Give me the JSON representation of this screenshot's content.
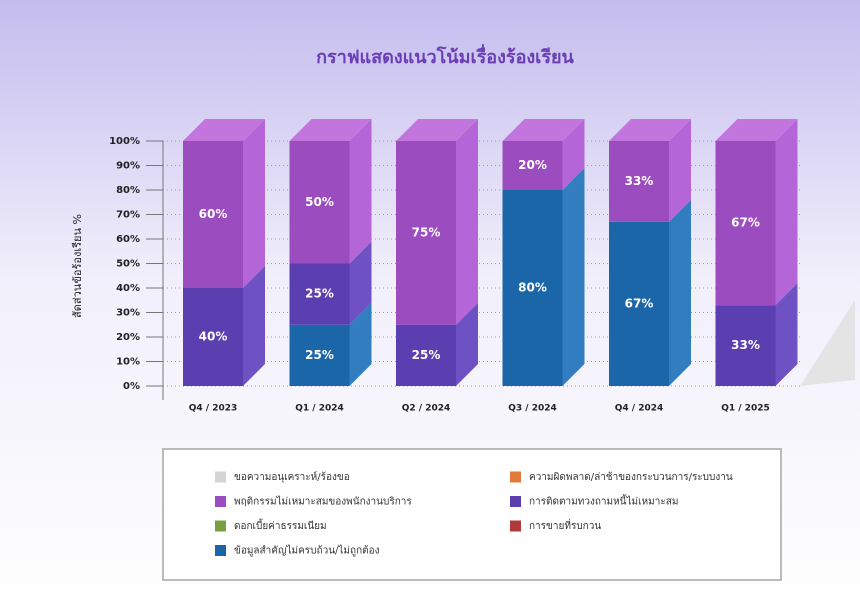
{
  "chart_data": {
    "type": "stacked-bar-3d",
    "title": "กราฟแสดงแนวโน้มเรื่องร้องเรียน",
    "y_label": "สัดส่วนข้อร้องเรียน %",
    "categories": [
      "Q4 / 2023",
      "Q1 / 2024",
      "Q2 / 2024",
      "Q3 / 2024",
      "Q4 / 2024",
      "Q1 / 2025"
    ],
    "ylim": [
      0,
      100
    ],
    "yticks": [
      {
        "value": 0,
        "label": "0%"
      },
      {
        "value": 10,
        "label": "10%"
      },
      {
        "value": 20,
        "label": "20%"
      },
      {
        "value": 30,
        "label": "30%"
      },
      {
        "value": 40,
        "label": "40%"
      },
      {
        "value": 50,
        "label": "50%"
      },
      {
        "value": 60,
        "label": "60%"
      },
      {
        "value": 70,
        "label": "70%"
      },
      {
        "value": 80,
        "label": "80%"
      },
      {
        "value": 90,
        "label": "90%"
      },
      {
        "value": 100,
        "label": "100%"
      }
    ],
    "grid": true,
    "series": [
      {
        "name": "ขอความอนุเคราะห์/ร้องขอ",
        "color": "#d4d4d4",
        "values": [
          null,
          null,
          null,
          null,
          null,
          null
        ]
      },
      {
        "name": "ความผิดพลาด/ล่าช้าของกระบวนการ/ระบบงาน",
        "color": "#e07b39",
        "values": [
          null,
          null,
          null,
          null,
          null,
          null
        ]
      },
      {
        "name": "พฤติกรรมไม่เหมาะสมของพนักงานบริการ",
        "color": "#9b4dbf",
        "values": [
          60,
          50,
          75,
          20,
          33,
          67
        ],
        "value_labels": [
          "60%",
          "50%",
          "75%",
          "20%",
          "33%",
          "67%"
        ]
      },
      {
        "name": "การติดตามทวงถามหนี้ไม่เหมาะสม",
        "color": "#5b3fb0",
        "values": [
          40,
          25,
          25,
          null,
          null,
          33
        ],
        "value_labels": [
          "40%",
          "25%",
          "25%",
          null,
          null,
          "33%"
        ]
      },
      {
        "name": "ดอกเบี้ยค่าธรรมเนียม",
        "color": "#78a040",
        "values": [
          null,
          null,
          null,
          null,
          null,
          null
        ]
      },
      {
        "name": "การขายที่รบกวน",
        "color": "#b03a3a",
        "values": [
          null,
          null,
          null,
          null,
          null,
          null
        ]
      },
      {
        "name": "ข้อมูลสำคัญไม่ครบถ้วน/ไม่ถูกต้อง",
        "color": "#1b66a8",
        "values": [
          null,
          25,
          null,
          80,
          67,
          null
        ],
        "value_labels": [
          null,
          "25%",
          null,
          "80%",
          "67%",
          null
        ]
      }
    ]
  }
}
